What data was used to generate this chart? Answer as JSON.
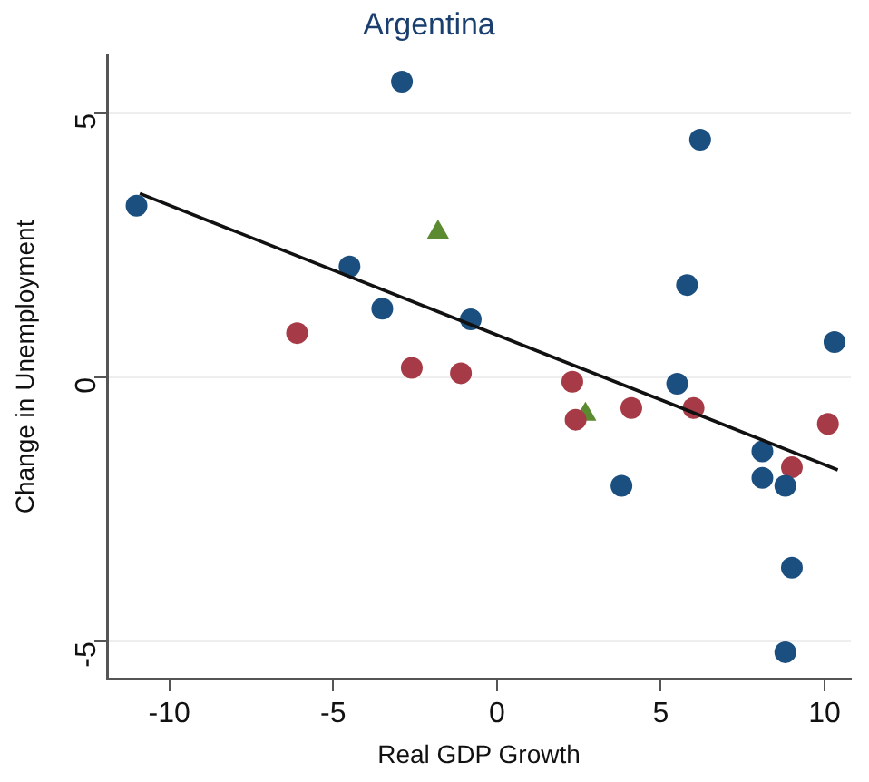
{
  "chart_data": {
    "type": "scatter",
    "title": "Argentina",
    "xlabel": "Real GDP Growth",
    "ylabel": "Change in Unemployment",
    "xlim": [
      -11.9,
      10.8
    ],
    "ylim": [
      -5.7,
      6.1
    ],
    "xticks": [
      -10,
      -5,
      0,
      5,
      10
    ],
    "yticks": [
      -5,
      0,
      5
    ],
    "grid": "y",
    "legend": false,
    "series": [
      {
        "color": "#1b4f80",
        "marker": "circle",
        "x": [
          -11.0,
          -2.9,
          6.2,
          -4.5,
          -3.5,
          -0.8,
          5.8,
          10.3,
          5.5,
          3.8,
          8.1,
          8.1,
          8.8,
          9.0,
          8.8
        ],
        "values": [
          3.25,
          5.6,
          4.5,
          2.1,
          1.3,
          1.1,
          1.75,
          0.67,
          -0.12,
          -2.05,
          -1.4,
          -1.9,
          -2.05,
          -3.6,
          -5.2
        ]
      },
      {
        "color": "#a63a46",
        "marker": "circle",
        "x": [
          -6.1,
          -2.6,
          -1.1,
          2.3,
          2.4,
          4.1,
          6.0,
          10.1,
          9.0
        ],
        "values": [
          0.84,
          0.18,
          0.08,
          -0.08,
          -0.8,
          -0.58,
          -0.58,
          -0.88,
          -1.7
        ]
      },
      {
        "color": "#5b8a31",
        "marker": "triangle",
        "x": [
          -1.8,
          2.7
        ],
        "values": [
          2.75,
          -0.7
        ]
      },
      {
        "type": "line",
        "color": "#111111",
        "marker": "none",
        "x": [
          -10.9,
          10.4
        ],
        "values": [
          3.48,
          -1.75
        ]
      }
    ]
  }
}
